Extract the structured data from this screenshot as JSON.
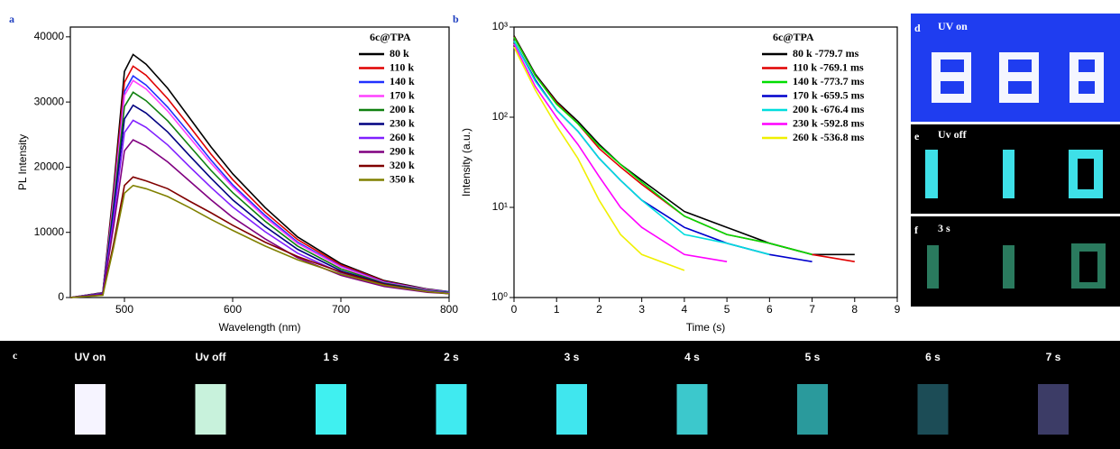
{
  "chart_data": [
    {
      "type": "line",
      "panel": "a",
      "xlabel": "Wavelength (nm)",
      "ylabel": "PL Intensity",
      "legend_title": "6c@TPA",
      "legend": "upper right",
      "xlim": [
        450,
        800
      ],
      "xticks": [
        500,
        600,
        700,
        800
      ],
      "ylim": [
        0,
        41500
      ],
      "yticks": [
        0,
        10000,
        20000,
        30000,
        40000
      ],
      "yscale": "linear",
      "x": [
        450,
        480,
        490,
        500,
        508,
        520,
        540,
        560,
        580,
        600,
        630,
        660,
        700,
        740,
        780,
        800
      ],
      "series": [
        {
          "name": "80 k",
          "color": "#000000",
          "values": [
            0,
            750,
            16800,
            34700,
            37300,
            35800,
            32100,
            27600,
            23100,
            19000,
            13800,
            9300,
            5200,
            2600,
            1300,
            900
          ]
        },
        {
          "name": "110 k",
          "color": "#e00000",
          "values": [
            0,
            710,
            16000,
            33000,
            35500,
            34100,
            30500,
            26300,
            22000,
            18100,
            13100,
            8900,
            5000,
            2500,
            1200,
            900
          ]
        },
        {
          "name": "140 k",
          "color": "#2030ff",
          "values": [
            0,
            680,
            15300,
            31600,
            34000,
            32600,
            29200,
            25200,
            21100,
            17300,
            12600,
            8500,
            4800,
            2400,
            1200,
            900
          ]
        },
        {
          "name": "170 k",
          "color": "#ff40ff",
          "values": [
            0,
            670,
            15000,
            31000,
            33300,
            32000,
            28600,
            24600,
            20600,
            17000,
            12300,
            8300,
            4700,
            2300,
            1200,
            800
          ]
        },
        {
          "name": "200 k",
          "color": "#108010",
          "values": [
            0,
            630,
            14200,
            29300,
            31500,
            30200,
            27100,
            23300,
            19500,
            16100,
            11700,
            7900,
            4400,
            2200,
            1100,
            800
          ]
        },
        {
          "name": "230 k",
          "color": "#000080",
          "values": [
            0,
            590,
            13300,
            27400,
            29500,
            28300,
            25400,
            21800,
            18300,
            15000,
            10900,
            7400,
            4100,
            2100,
            1000,
            700
          ]
        },
        {
          "name": "260 k",
          "color": "#8020ff",
          "values": [
            0,
            540,
            12200,
            25300,
            27200,
            26100,
            23400,
            20100,
            16900,
            13900,
            10100,
            6800,
            3800,
            1900,
            1000,
            700
          ]
        },
        {
          "name": "290 k",
          "color": "#800080",
          "values": [
            0,
            480,
            10900,
            22500,
            24200,
            23200,
            20800,
            17900,
            15000,
            12300,
            9000,
            6100,
            3400,
            1700,
            800,
            600
          ]
        },
        {
          "name": "320 k",
          "color": "#800000",
          "values": [
            0,
            370,
            8300,
            17200,
            18500,
            17900,
            16700,
            14800,
            13000,
            11100,
            8500,
            6300,
            3900,
            2000,
            900,
            600
          ]
        },
        {
          "name": "350 k",
          "color": "#808000",
          "values": [
            0,
            340,
            7700,
            16000,
            17200,
            16700,
            15500,
            13800,
            12000,
            10300,
            7900,
            5800,
            3600,
            1900,
            900,
            600
          ]
        }
      ]
    },
    {
      "type": "line",
      "panel": "b",
      "xlabel": "Time (s)",
      "ylabel": "Intensity (a.u.)",
      "legend_title": "6c@TPA",
      "legend": "upper right",
      "xlim": [
        0,
        9
      ],
      "xticks": [
        0,
        1,
        2,
        3,
        4,
        5,
        6,
        7,
        8,
        9
      ],
      "ylim": [
        1,
        1000
      ],
      "yscale": "log",
      "yticks": [
        {
          "value": 1,
          "label": "10⁰"
        },
        {
          "value": 10,
          "label": "10¹"
        },
        {
          "value": 100,
          "label": "10²"
        },
        {
          "value": 1000,
          "label": "10³"
        }
      ],
      "x": [
        0,
        0.5,
        1,
        1.5,
        2,
        2.5,
        3,
        4,
        5,
        6,
        7,
        8
      ],
      "series": [
        {
          "name": "80 k -779.7 ms",
          "color": "#000000",
          "values": [
            800,
            300,
            150,
            90,
            50,
            30,
            20,
            9,
            6,
            4,
            3,
            3
          ]
        },
        {
          "name": "110 k -769.1 ms",
          "color": "#e00000",
          "values": [
            780,
            290,
            145,
            85,
            45,
            28,
            18,
            8,
            5,
            4,
            3,
            2.5
          ]
        },
        {
          "name": "140 k -773.7 ms",
          "color": "#00dd00",
          "values": [
            770,
            290,
            140,
            85,
            48,
            30,
            19,
            8,
            5,
            4,
            3,
            null
          ]
        },
        {
          "name": "170 k -659.5 ms",
          "color": "#0000cc",
          "values": [
            700,
            260,
            120,
            70,
            35,
            20,
            12,
            6,
            4,
            3,
            2.5,
            null
          ]
        },
        {
          "name": "200 k -676.4 ms",
          "color": "#00dddd",
          "values": [
            700,
            250,
            120,
            70,
            35,
            20,
            12,
            5,
            4,
            3,
            null,
            null
          ]
        },
        {
          "name": "230 k -592.8 ms",
          "color": "#ff00ff",
          "values": [
            650,
            220,
            100,
            50,
            22,
            10,
            6,
            3,
            2.5,
            null,
            null,
            null
          ]
        },
        {
          "name": "260 k -536.8 ms",
          "color": "#f0f000",
          "values": [
            600,
            200,
            80,
            35,
            12,
            5,
            3,
            2,
            null,
            null,
            null,
            null
          ]
        }
      ]
    }
  ],
  "photos": {
    "side": [
      {
        "letter": "d",
        "label": "UV on"
      },
      {
        "letter": "e",
        "label": "Uv off"
      },
      {
        "letter": "f",
        "label": "3 s"
      }
    ],
    "strip": {
      "letter": "c",
      "labels": [
        "UV on",
        "Uv off",
        "1 s",
        "2 s",
        "3 s",
        "4 s",
        "5 s",
        "6 s",
        "7 s"
      ]
    }
  }
}
